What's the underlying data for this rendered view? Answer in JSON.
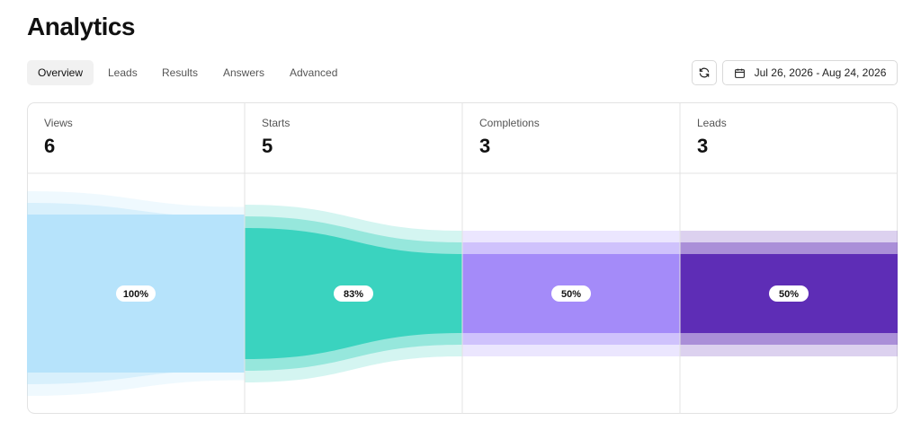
{
  "header": {
    "title": "Analytics"
  },
  "tabs": [
    "Overview",
    "Leads",
    "Results",
    "Answers",
    "Advanced"
  ],
  "date_range": "Jul 26, 2026 - Aug 24, 2026",
  "chart_data": {
    "type": "funnel",
    "categories": [
      "Views",
      "Starts",
      "Completions",
      "Leads"
    ],
    "values": [
      6,
      5,
      3,
      3
    ],
    "shares": {
      "values": [
        100,
        83,
        50,
        50
      ],
      "value_labels": [
        "100%",
        "83%",
        "50%",
        "50%"
      ]
    },
    "colors": [
      "#b6e3fb",
      "#3ad3bf",
      "#a48bf9",
      "#5e2db6"
    ]
  }
}
